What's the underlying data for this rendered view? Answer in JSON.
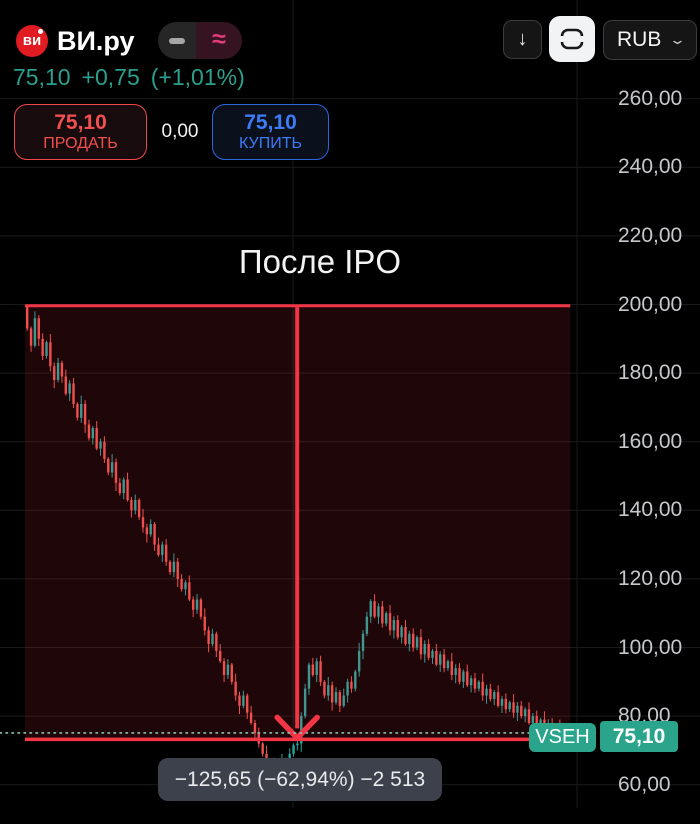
{
  "header": {
    "logo_text": "ви",
    "title": "ВИ.ру",
    "last_price": "75,10",
    "change_abs": "+0,75",
    "change_pct": "(+1,01%)",
    "sell_price": "75,10",
    "sell_label": "ПРОДАТЬ",
    "spread": "0,00",
    "buy_price": "75,10",
    "buy_label": "КУПИТЬ",
    "currency": "RUB",
    "chevron": "⌄",
    "download_glyph": "↓"
  },
  "chart_data": {
    "type": "candlestick",
    "symbol": "VSEH",
    "annotation": "После IPO",
    "y_ticks": [
      {
        "value": 260,
        "label": "260,00"
      },
      {
        "value": 240,
        "label": "240,00"
      },
      {
        "value": 220,
        "label": "220,00"
      },
      {
        "value": 200,
        "label": "200,00"
      },
      {
        "value": 180,
        "label": "180,00"
      },
      {
        "value": 160,
        "label": "160,00"
      },
      {
        "value": 140,
        "label": "140,00"
      },
      {
        "value": 120,
        "label": "120,00"
      },
      {
        "value": 100,
        "label": "100,00"
      },
      {
        "value": 80,
        "label": "80,00"
      },
      {
        "value": 60,
        "label": "60,00"
      }
    ],
    "ylim": [
      55,
      272
    ],
    "grid": true,
    "vertical_grid_x": [
      293,
      577
    ],
    "current_price": {
      "value": 75.1,
      "tag_label": "75,10",
      "symbol_tag": "VSEH"
    },
    "measurement": {
      "from_price": 199.65,
      "to_price": 73.2,
      "from_bar": 0,
      "to_bar": 141,
      "arrow_bar": 70,
      "change_abs": -125.65,
      "change_pct": -62.94,
      "bars_value": -2513,
      "tooltip_text": "−125,65 (−62,94%) −2 513"
    },
    "first_open": 199.7,
    "closes": [
      193,
      188,
      196,
      190,
      185,
      189,
      182,
      178,
      183,
      179,
      174,
      177,
      171,
      167,
      171,
      165,
      161,
      164,
      158,
      160,
      155,
      151,
      154,
      148,
      145,
      149,
      143,
      140,
      143,
      138,
      135,
      133,
      136,
      130,
      127,
      130,
      125,
      122,
      125,
      120,
      117,
      119,
      114,
      111,
      114,
      109,
      105,
      101,
      104,
      99,
      96,
      92,
      95,
      90,
      86,
      83,
      86,
      81,
      78,
      75,
      72,
      69,
      66,
      64,
      66.5,
      63.8,
      67,
      65,
      69,
      71.5,
      72,
      80,
      88,
      95,
      92,
      96,
      90,
      86,
      89,
      84,
      87,
      83,
      86,
      90,
      88,
      93,
      99,
      104,
      109,
      113.5,
      109,
      112,
      107,
      110,
      105,
      108,
      103,
      106,
      101,
      104,
      100,
      103,
      98,
      101,
      97,
      99,
      95,
      98,
      94,
      96,
      92,
      94,
      90,
      93,
      89,
      91,
      88,
      90,
      86,
      88,
      85,
      87,
      83,
      85,
      82,
      84,
      81,
      83,
      80,
      82,
      78,
      80,
      77,
      79,
      76,
      78,
      75,
      77,
      74.5,
      75.1
    ],
    "wick_pattern_high": [
      1.4,
      0.6,
      2.0,
      0.9,
      1.6,
      0.5,
      2.4,
      1.1
    ],
    "wick_pattern_low": [
      0.7,
      1.8,
      0.5,
      2.1,
      1.2,
      0.8,
      1.5,
      2.4
    ],
    "low_floor": 63.3,
    "high_cap": 200
  },
  "colors": {
    "up": "#26a69a",
    "down": "#ef5350",
    "measure_red": "#f23645",
    "measure_fill": "rgba(242,54,69,0.13)",
    "price_line": "#8ac4b6",
    "grid": "#1a1a1a",
    "tag_teal": "#2aa58c"
  }
}
